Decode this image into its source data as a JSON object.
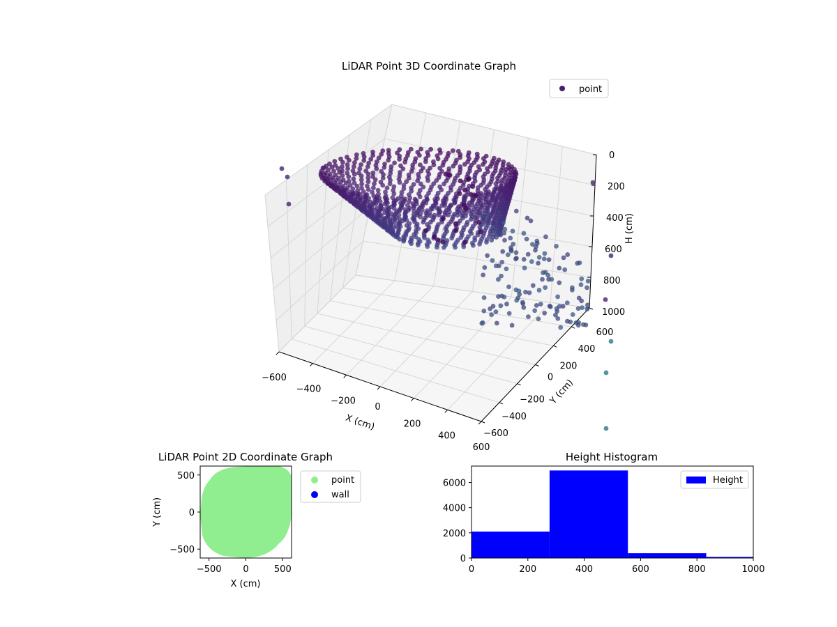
{
  "chart_data": [
    {
      "type": "scatter",
      "projection": "3d",
      "title": "LiDAR Point 3D Coordinate Graph",
      "xlabel": "X (cm)",
      "ylabel": "Y (cm)",
      "zlabel": "H (cm)",
      "xlim": [
        -600,
        600
      ],
      "ylim": [
        -600,
        600
      ],
      "zlim": [
        1000,
        0
      ],
      "z_inverted": true,
      "xticks": [
        "−600",
        "−400",
        "−200",
        "0",
        "200",
        "400",
        "600"
      ],
      "yticks": [
        "−600",
        "−400",
        "−200",
        "0",
        "200",
        "400",
        "600"
      ],
      "zticks": [
        "0",
        "200",
        "400",
        "600",
        "800",
        "1000"
      ],
      "grid": true,
      "legend": {
        "placement": "top-right",
        "entries": [
          {
            "label": "point",
            "color": "#46216e"
          }
        ]
      },
      "colormap": "viridis",
      "series": [
        {
          "name": "point",
          "shape": "bowl-shaped point cloud",
          "height_range_cm": [
            0,
            1000
          ]
        }
      ]
    },
    {
      "type": "scatter",
      "title": "LiDAR Point 2D Coordinate Graph",
      "xlabel": "X (cm)",
      "ylabel": "Y (cm)",
      "xlim": [
        -620,
        620
      ],
      "ylim": [
        -620,
        620
      ],
      "xticks": [
        "−500",
        "0",
        "500"
      ],
      "yticks": [
        "−500",
        "0",
        "500"
      ],
      "legend": {
        "placement": "right-outside",
        "entries": [
          {
            "label": "point",
            "color": "#90ee90"
          },
          {
            "label": "wall",
            "color": "#0000ff"
          }
        ]
      },
      "series": [
        {
          "name": "point",
          "color": "#90ee90",
          "shape": "filled blob",
          "approx_extent_cm": {
            "x": [
              -620,
              620
            ],
            "y": [
              -620,
              620
            ]
          }
        },
        {
          "name": "wall",
          "color": "#0000ff",
          "points": []
        }
      ]
    },
    {
      "type": "bar",
      "subtype": "histogram",
      "title": "Height Histogram",
      "xlim": [
        0,
        1000
      ],
      "ylim": [
        0,
        7300
      ],
      "xticks": [
        "0",
        "200",
        "400",
        "600",
        "800",
        "1000"
      ],
      "yticks": [
        "0",
        "2000",
        "4000",
        "6000"
      ],
      "bins": [
        {
          "x0": 0,
          "x1": 277,
          "count": 2100
        },
        {
          "x0": 277,
          "x1": 555,
          "count": 6950
        },
        {
          "x0": 555,
          "x1": 833,
          "count": 380
        },
        {
          "x0": 833,
          "x1": 1000,
          "count": 90
        }
      ],
      "color": "#0000ff",
      "legend": {
        "placement": "top-right",
        "entries": [
          {
            "label": "Height",
            "color": "#0000ff"
          }
        ]
      }
    }
  ]
}
